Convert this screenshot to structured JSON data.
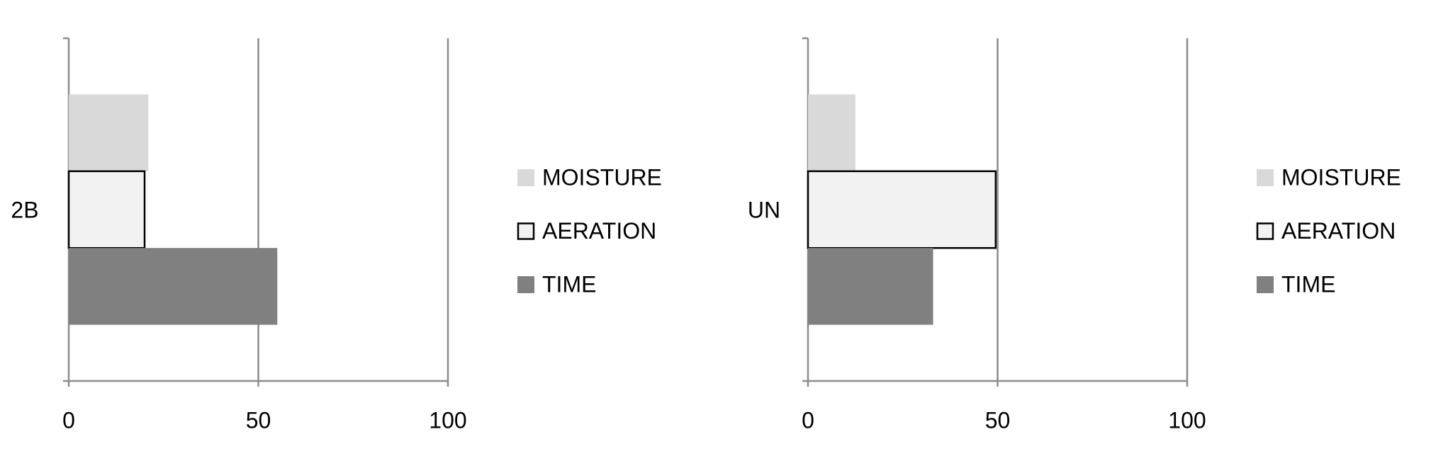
{
  "chart_data": [
    {
      "type": "bar",
      "orientation": "horizontal",
      "categories": [
        "2B"
      ],
      "series": [
        {
          "name": "MOISTURE",
          "color": "#d9d9d9",
          "values": [
            21
          ]
        },
        {
          "name": "AERATION",
          "color": "#f2f2f2",
          "edgecolor": "#000000",
          "values": [
            20
          ]
        },
        {
          "name": "TIME",
          "color": "#808080",
          "values": [
            55
          ]
        }
      ],
      "xlim": [
        0,
        100
      ],
      "xticks": [
        0,
        50,
        100
      ],
      "grid": true,
      "legend": "right"
    },
    {
      "type": "bar",
      "orientation": "horizontal",
      "categories": [
        "UN"
      ],
      "series": [
        {
          "name": "MOISTURE",
          "color": "#d9d9d9",
          "values": [
            12.5
          ]
        },
        {
          "name": "AERATION",
          "color": "#f2f2f2",
          "edgecolor": "#000000",
          "values": [
            49.5
          ]
        },
        {
          "name": "TIME",
          "color": "#808080",
          "values": [
            33
          ]
        }
      ],
      "xlim": [
        0,
        100
      ],
      "xticks": [
        0,
        50,
        100
      ],
      "grid": true,
      "legend": "right"
    }
  ]
}
